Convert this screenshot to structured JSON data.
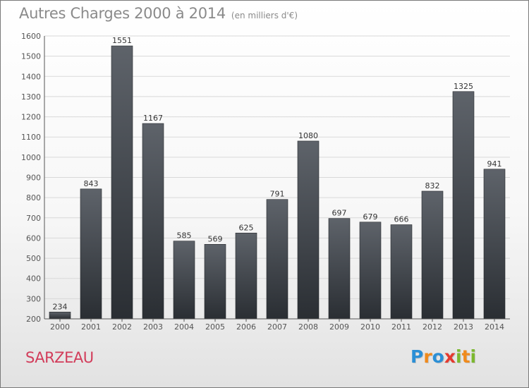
{
  "header": {
    "title": "Autres Charges 2000 à 2014",
    "subtitle": "(en milliers d'€)"
  },
  "footer": {
    "city": "SARZEAU",
    "logo_letters": [
      {
        "ch": "P",
        "color": "#2b8fd6"
      },
      {
        "ch": "r",
        "color": "#f08a1c"
      },
      {
        "ch": "o",
        "color": "#2b8fd6"
      },
      {
        "ch": "x",
        "color": "#e53a2f"
      },
      {
        "ch": "i",
        "color": "#7cb82f"
      },
      {
        "ch": "t",
        "color": "#f08a1c"
      },
      {
        "ch": "i",
        "color": "#7cb82f"
      }
    ]
  },
  "chart_data": {
    "type": "bar",
    "categories": [
      "2000",
      "2001",
      "2002",
      "2003",
      "2004",
      "2005",
      "2006",
      "2007",
      "2008",
      "2009",
      "2010",
      "2011",
      "2012",
      "2013",
      "2014"
    ],
    "values": [
      234,
      843,
      1551,
      1167,
      585,
      569,
      625,
      791,
      1080,
      697,
      679,
      666,
      832,
      1325,
      941
    ],
    "ylim": [
      200,
      1600
    ],
    "yticks": [
      200,
      300,
      400,
      500,
      600,
      700,
      800,
      900,
      1000,
      1100,
      1200,
      1300,
      1400,
      1500,
      1600
    ],
    "grid": true,
    "bar_color_top": "#5e636a",
    "bar_color_bottom": "#2a2e33"
  }
}
